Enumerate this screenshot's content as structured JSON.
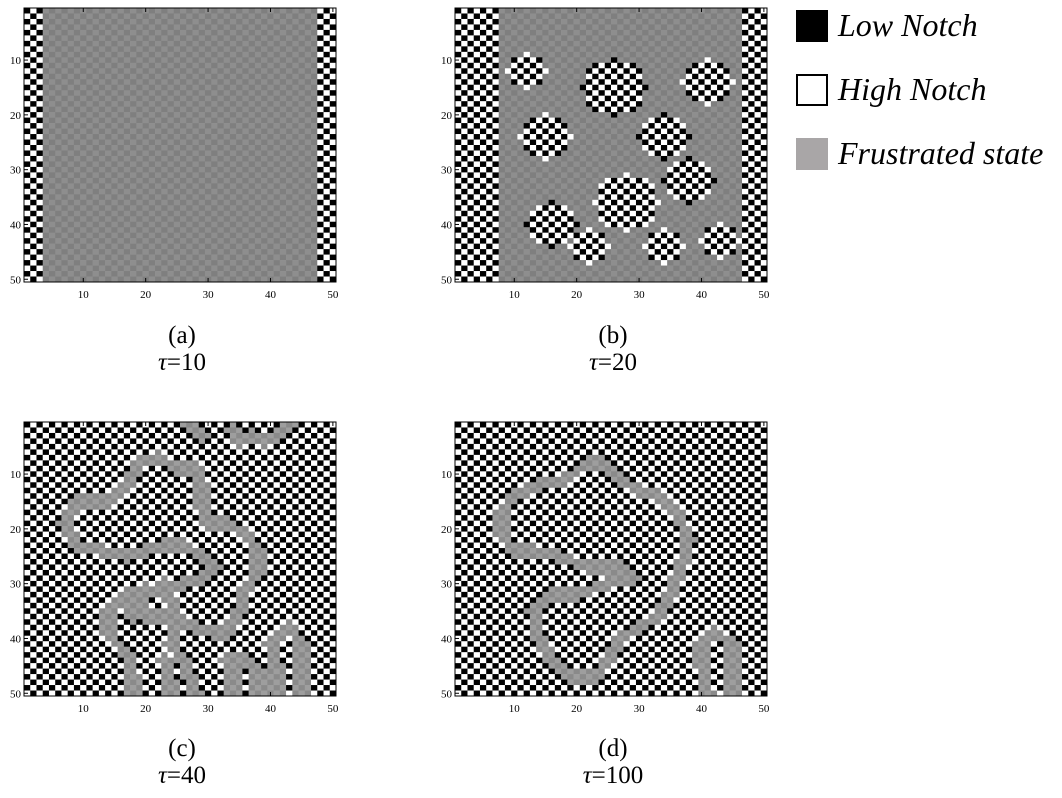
{
  "legend": {
    "items": [
      {
        "label": "Low Notch",
        "color": "#000000",
        "border": "#000000"
      },
      {
        "label": "High Notch",
        "color": "#ffffff",
        "border": "#000000"
      },
      {
        "label": "Frustrated state",
        "color": "#a9a6a7",
        "border": "#a9a6a7"
      }
    ]
  },
  "chart_data": [
    {
      "type": "heatmap",
      "panel_label": "(a)",
      "tau_symbol": "τ",
      "tau_text": "=10",
      "tau": 10,
      "grid_size": 50,
      "xlim": [
        1,
        50
      ],
      "ylim": [
        1,
        50
      ],
      "x_ticks": [
        10,
        20,
        30,
        40,
        50
      ],
      "y_ticks": [
        10,
        20,
        30,
        40,
        50
      ],
      "checker_columns": [
        1,
        2,
        3,
        48,
        49,
        50
      ],
      "frustrated_regions": []
    },
    {
      "type": "heatmap",
      "panel_label": "(b)",
      "tau_symbol": "τ",
      "tau_text": "=20",
      "tau": 20,
      "grid_size": 50,
      "xlim": [
        1,
        50
      ],
      "ylim": [
        1,
        50
      ],
      "x_ticks": [
        10,
        20,
        30,
        40,
        50
      ],
      "y_ticks": [
        10,
        20,
        30,
        40,
        50
      ],
      "gray_region": {
        "cols": [
          8,
          46
        ],
        "rows": [
          1,
          50
        ]
      },
      "checker_blobs": [
        {
          "cx": 15,
          "cy": 24,
          "r": 4
        },
        {
          "cx": 26,
          "cy": 15,
          "r": 5
        },
        {
          "cx": 34,
          "cy": 24,
          "r": 4
        },
        {
          "cx": 16,
          "cy": 40,
          "r": 4
        },
        {
          "cx": 28,
          "cy": 36,
          "r": 5
        },
        {
          "cx": 38,
          "cy": 32,
          "r": 4
        },
        {
          "cx": 41,
          "cy": 14,
          "r": 4
        },
        {
          "cx": 22,
          "cy": 44,
          "r": 3
        },
        {
          "cx": 34,
          "cy": 44,
          "r": 3
        },
        {
          "cx": 12,
          "cy": 12,
          "r": 3
        },
        {
          "cx": 43,
          "cy": 43,
          "r": 3
        }
      ]
    },
    {
      "type": "heatmap",
      "panel_label": "(c)",
      "tau_symbol": "τ",
      "tau_text": "=40",
      "tau": 40,
      "grid_size": 50,
      "xlim": [
        1,
        50
      ],
      "ylim": [
        1,
        50
      ],
      "x_ticks": [
        10,
        20,
        30,
        40,
        50
      ],
      "y_ticks": [
        10,
        20,
        30,
        40,
        50
      ],
      "frustrated_paths": [
        [
          [
            19,
            8
          ],
          [
            17,
            12
          ],
          [
            14,
            15
          ],
          [
            9,
            15
          ],
          [
            7,
            19
          ],
          [
            9,
            23
          ],
          [
            13,
            24
          ],
          [
            17,
            25
          ],
          [
            20,
            24
          ],
          [
            23,
            23
          ],
          [
            26,
            23
          ],
          [
            29,
            25
          ],
          [
            31,
            27
          ],
          [
            29,
            29
          ],
          [
            26,
            30
          ],
          [
            22,
            31
          ],
          [
            17,
            32
          ],
          [
            14,
            35
          ],
          [
            14,
            39
          ],
          [
            17,
            43
          ],
          [
            18,
            47
          ],
          [
            18,
            50
          ]
        ],
        [
          [
            19,
            8
          ],
          [
            22,
            7
          ],
          [
            25,
            9
          ],
          [
            28,
            9
          ],
          [
            29,
            12
          ],
          [
            29,
            16
          ],
          [
            30,
            19
          ],
          [
            33,
            19
          ],
          [
            36,
            21
          ],
          [
            38,
            24
          ],
          [
            38,
            28
          ],
          [
            36,
            31
          ],
          [
            35,
            35
          ],
          [
            33,
            39
          ],
          [
            31,
            39
          ],
          [
            28,
            38
          ],
          [
            24,
            36
          ],
          [
            20,
            36
          ],
          [
            19,
            33
          ],
          [
            20,
            31
          ]
        ],
        [
          [
            34,
            2
          ],
          [
            35,
            4
          ],
          [
            37,
            3
          ],
          [
            39,
            4
          ],
          [
            41,
            3
          ],
          [
            43,
            1
          ]
        ],
        [
          [
            27,
            1
          ],
          [
            29,
            3
          ]
        ],
        [
          [
            23,
            30
          ],
          [
            24,
            33
          ],
          [
            25,
            37
          ],
          [
            24,
            41
          ],
          [
            26,
            44
          ],
          [
            27,
            47
          ],
          [
            28,
            50
          ]
        ],
        [
          [
            41,
            50
          ],
          [
            41,
            45
          ],
          [
            40,
            41
          ],
          [
            43,
            38
          ],
          [
            45,
            41
          ],
          [
            45,
            45
          ],
          [
            45,
            50
          ]
        ],
        [
          [
            33,
            44
          ],
          [
            36,
            44
          ],
          [
            38,
            46
          ],
          [
            38,
            50
          ]
        ],
        [
          [
            34,
            45
          ],
          [
            34,
            50
          ]
        ],
        [
          [
            23,
            44
          ],
          [
            24,
            48
          ],
          [
            24,
            50
          ]
        ],
        [
          [
            18,
            33
          ],
          [
            18,
            36
          ]
        ]
      ]
    },
    {
      "type": "heatmap",
      "panel_label": "(d)",
      "tau_symbol": "τ",
      "tau_text": "=100",
      "tau": 100,
      "grid_size": 50,
      "xlim": [
        1,
        50
      ],
      "ylim": [
        1,
        50
      ],
      "x_ticks": [
        10,
        20,
        30,
        40,
        50
      ],
      "y_ticks": [
        10,
        20,
        30,
        40,
        50
      ],
      "frustrated_paths": [
        [
          [
            22,
            8
          ],
          [
            18,
            11
          ],
          [
            14,
            12
          ],
          [
            10,
            14
          ],
          [
            8,
            17
          ],
          [
            8,
            21
          ],
          [
            10,
            24
          ],
          [
            13,
            24
          ],
          [
            17,
            25
          ],
          [
            22,
            27
          ],
          [
            27,
            27
          ],
          [
            29,
            29
          ],
          [
            25,
            30
          ],
          [
            20,
            32
          ],
          [
            16,
            32
          ],
          [
            13,
            35
          ],
          [
            14,
            40
          ],
          [
            16,
            44
          ],
          [
            19,
            47
          ],
          [
            23,
            47
          ],
          [
            25,
            44
          ],
          [
            27,
            40
          ],
          [
            30,
            38
          ],
          [
            33,
            36
          ],
          [
            35,
            32
          ],
          [
            37,
            26
          ],
          [
            38,
            22
          ],
          [
            36,
            17
          ],
          [
            33,
            14
          ],
          [
            30,
            13
          ],
          [
            27,
            11
          ],
          [
            24,
            8
          ],
          [
            22,
            8
          ]
        ],
        [
          [
            41,
            50
          ],
          [
            40,
            45
          ],
          [
            40,
            41
          ],
          [
            42,
            39
          ],
          [
            45,
            41
          ],
          [
            45,
            45
          ],
          [
            45,
            50
          ]
        ]
      ]
    }
  ]
}
